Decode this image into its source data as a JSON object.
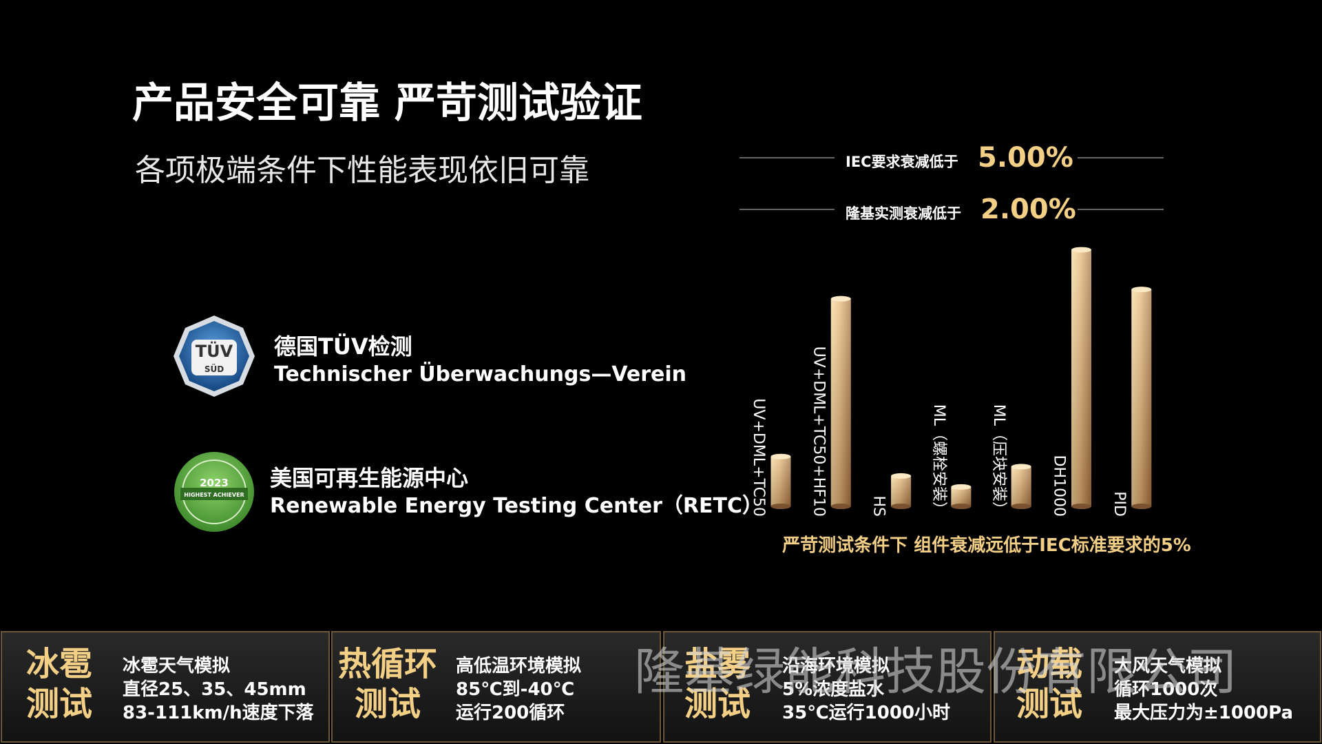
{
  "title": "产品安全可靠 严苛测试验证",
  "subtitle": "各项极端条件下性能表现依旧可靠",
  "benchmarks": [
    {
      "label": "IEC要求衰减低于",
      "value": "5.00%"
    },
    {
      "label": "隆基实测衰减低于",
      "value": "2.00%"
    }
  ],
  "certifications": [
    {
      "logo_text": [
        "TÜV",
        "SÜD"
      ],
      "name": "德国TÜV检测",
      "full_name": "Technischer Überwachungs—Verein"
    },
    {
      "logo_text": [
        "2023",
        "HIGHEST ACHIEVER"
      ],
      "name": "美国可再生能源中心",
      "full_name": "Renewable Energy Testing Center（RETC）"
    }
  ],
  "chart_data": {
    "type": "bar",
    "categories": [
      "UV+DML+TC50",
      "UV+DML+TC50+HF10",
      "HS",
      "ML（螺栓安装）",
      "ML（压块安装）",
      "DH1000",
      "PID"
    ],
    "values": [
      59,
      246,
      36,
      23,
      47,
      304,
      257
    ],
    "ylim": [
      0,
      320
    ],
    "caption": "严苛测试条件下 组件衰减远低于IEC标准要求的5%"
  },
  "tests": [
    {
      "name": [
        "冰雹",
        "测试"
      ],
      "details": [
        "冰雹天气模拟",
        "直径25、35、45mm",
        "83-111km/h速度下落"
      ]
    },
    {
      "name": [
        "热循环",
        "测试"
      ],
      "details": [
        "高低温环境模拟",
        "85℃到-40℃",
        "运行200循环"
      ]
    },
    {
      "name": [
        "盐雾",
        "测试"
      ],
      "details": [
        "沿海环境模拟",
        "5%浓度盐水",
        "35℃运行1000小时"
      ]
    },
    {
      "name": [
        "动载",
        "测试"
      ],
      "details": [
        "大风天气模拟",
        "循环1000次",
        "最大压力为±1000Pa"
      ]
    }
  ],
  "watermark": "隆基绿能科技股份有限公司"
}
